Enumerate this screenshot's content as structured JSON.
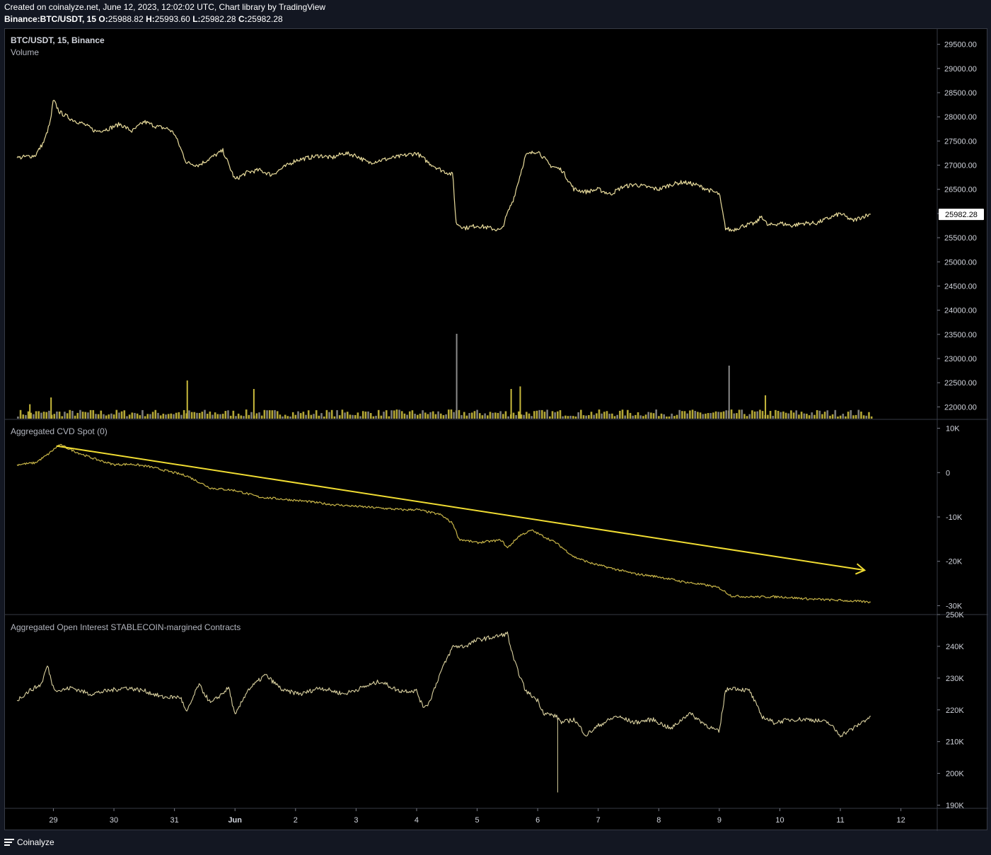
{
  "header": {
    "created": "Created on coinalyze.net, June 12, 2023, 12:02:02 UTC, Chart library by TradingView",
    "symbol": "Binance:BTC/USDT, 15",
    "o_label": "O:",
    "o": "25988.82",
    "h_label": "H:",
    "h": "25993.60",
    "l_label": "L:",
    "l": "25982.28",
    "c_label": "C:",
    "c": "25982.28"
  },
  "footer": {
    "brand": "Coinalyze"
  },
  "colors": {
    "background": "#000000",
    "page": "#131722",
    "price_line": "#e9dc9c",
    "volume_up": "#c8b93c",
    "volume_down": "#8a8a8a",
    "cvd_line": "#c8b548",
    "trend_arrow": "#f0dc32",
    "oi_line": "#d8cf9e",
    "axis_text": "#d1d4dc",
    "last_price_badge_bg": "#ffffff"
  },
  "chart_data": [
    {
      "type": "line",
      "title": "BTC/USDT, 15, Binance",
      "subtitle": "Volume",
      "ylim": [
        21800,
        29700
      ],
      "yticks": [
        "29500.00",
        "29000.00",
        "28500.00",
        "28000.00",
        "27500.00",
        "27000.00",
        "26500.00",
        "26000.00",
        "25500.00",
        "25000.00",
        "24500.00",
        "24000.00",
        "23500.00",
        "23000.00",
        "22500.00",
        "22000.00"
      ],
      "yticks_values": [
        29500,
        29000,
        28500,
        28000,
        27500,
        27000,
        26500,
        26000,
        25500,
        25000,
        24500,
        24000,
        23500,
        23000,
        22500,
        22000
      ],
      "last_value_label": "25982.28",
      "last_value": 25982.28,
      "x": [
        28.4,
        28.7,
        28.85,
        28.95,
        29.0,
        29.1,
        29.3,
        29.5,
        29.7,
        29.9,
        30.1,
        30.3,
        30.5,
        30.7,
        30.9,
        31.0,
        31.2,
        31.4,
        31.6,
        31.8,
        32.0,
        32.2,
        32.4,
        32.6,
        32.8,
        33.0,
        33.2,
        33.4,
        33.6,
        33.8,
        34.0,
        34.2,
        34.4,
        34.6,
        34.8,
        35.0,
        35.2,
        35.4,
        35.6,
        35.65,
        35.8,
        36.0,
        36.2,
        36.4,
        36.5,
        36.6,
        36.8,
        37.0,
        37.2,
        37.4,
        37.6,
        37.8,
        38.0,
        38.2,
        38.4,
        38.6,
        38.8,
        39.0,
        39.2,
        39.4,
        39.6,
        39.8,
        40.0,
        40.1,
        40.2,
        40.4,
        40.6,
        40.7,
        40.8,
        41.0,
        41.2,
        41.4,
        41.6,
        41.8,
        42.0,
        42.2,
        42.4,
        42.5
      ],
      "price": [
        27150,
        27200,
        27500,
        27900,
        28350,
        28100,
        27950,
        27850,
        27700,
        27750,
        27850,
        27700,
        27900,
        27800,
        27750,
        27650,
        27050,
        27000,
        27150,
        27300,
        26700,
        26850,
        26900,
        26800,
        26950,
        27100,
        27150,
        27200,
        27150,
        27250,
        27200,
        27050,
        27100,
        27150,
        27200,
        27250,
        27050,
        26900,
        26800,
        25800,
        25700,
        25750,
        25700,
        25650,
        26000,
        26300,
        27200,
        27300,
        27000,
        26900,
        26500,
        26450,
        26500,
        26400,
        26550,
        26600,
        26550,
        26500,
        26600,
        26650,
        26600,
        26500,
        26400,
        25700,
        25650,
        25750,
        25800,
        25950,
        25750,
        25800,
        25750,
        25800,
        25800,
        25900,
        26000,
        25850,
        25950,
        25982
      ],
      "volume_spikes": [
        {
          "x": 28.6,
          "value": 340
        },
        {
          "x": 28.95,
          "value": 500
        },
        {
          "x": 31.2,
          "value": 900
        },
        {
          "x": 32.3,
          "value": 700
        },
        {
          "x": 35.65,
          "value": 2000
        },
        {
          "x": 36.55,
          "value": 700
        },
        {
          "x": 36.7,
          "value": 760
        },
        {
          "x": 40.15,
          "value": 1250
        },
        {
          "x": 40.75,
          "value": 550
        }
      ]
    },
    {
      "type": "line",
      "title": "Aggregated CVD Spot (0)",
      "ylim": [
        -32000,
        12000
      ],
      "yticks": [
        "10K",
        "0",
        "-10K",
        "-20K",
        "-30K"
      ],
      "yticks_values": [
        10000,
        0,
        -10000,
        -20000,
        -30000
      ],
      "x": [
        28.4,
        28.7,
        28.9,
        29.1,
        29.4,
        29.7,
        30.0,
        30.3,
        30.6,
        30.9,
        31.2,
        31.6,
        32.0,
        32.4,
        32.8,
        33.2,
        33.6,
        34.0,
        34.4,
        34.8,
        35.0,
        35.4,
        35.6,
        35.7,
        36.0,
        36.4,
        36.5,
        36.7,
        36.9,
        37.3,
        37.6,
        37.9,
        38.2,
        38.6,
        39.0,
        39.4,
        39.8,
        40.0,
        40.2,
        40.5,
        41.0,
        41.5,
        42.0,
        42.5
      ],
      "values": [
        1800,
        2200,
        4000,
        6300,
        4500,
        3000,
        1800,
        1900,
        1300,
        300,
        -700,
        -3500,
        -4000,
        -5500,
        -6000,
        -6500,
        -7200,
        -7600,
        -8000,
        -8400,
        -8300,
        -9500,
        -11500,
        -15000,
        -15800,
        -15200,
        -17000,
        -14200,
        -13000,
        -15800,
        -19000,
        -20500,
        -21500,
        -22800,
        -23500,
        -24600,
        -25400,
        -26000,
        -27800,
        -28000,
        -28000,
        -28500,
        -28800,
        -29200
      ]
    },
    {
      "type": "line",
      "title": "Aggregated Open Interest STABLECOIN-margined Contracts",
      "ylim": [
        189000,
        250000
      ],
      "yticks": [
        "250K",
        "240K",
        "230K",
        "220K",
        "210K",
        "200K",
        "190K"
      ],
      "yticks_values": [
        250000,
        240000,
        230000,
        220000,
        210000,
        200000,
        190000
      ],
      "x": [
        28.4,
        28.6,
        28.8,
        28.9,
        29.0,
        29.1,
        29.3,
        29.6,
        29.9,
        30.2,
        30.5,
        30.8,
        31.1,
        31.2,
        31.4,
        31.6,
        31.9,
        32.0,
        32.2,
        32.5,
        32.8,
        33.1,
        33.4,
        33.8,
        34.1,
        34.4,
        34.7,
        35.0,
        35.1,
        35.2,
        35.4,
        35.6,
        35.8,
        36.0,
        36.3,
        36.5,
        36.6,
        36.8,
        37.0,
        37.1,
        37.3,
        37.4,
        37.6,
        37.8,
        38.0,
        38.3,
        38.6,
        38.9,
        39.2,
        39.5,
        39.8,
        40.0,
        40.1,
        40.2,
        40.5,
        40.7,
        40.9,
        41.2,
        41.5,
        41.8,
        42.0,
        42.2,
        42.5
      ],
      "values": [
        223000,
        226000,
        228000,
        234000,
        227000,
        226000,
        227000,
        225000,
        226000,
        227000,
        226000,
        224000,
        224000,
        219000,
        228000,
        222000,
        227000,
        218000,
        226000,
        231000,
        226000,
        225000,
        227000,
        225000,
        227000,
        229000,
        226000,
        226000,
        221000,
        222000,
        232000,
        240000,
        240000,
        242000,
        243000,
        244000,
        236000,
        226000,
        223000,
        219000,
        218000,
        216000,
        217000,
        212000,
        215000,
        218000,
        216000,
        217000,
        214000,
        219000,
        215000,
        213000,
        226000,
        227000,
        226000,
        218000,
        216000,
        217000,
        217000,
        216000,
        212000,
        214000,
        218000
      ],
      "annotation_spike": {
        "x": 37.33,
        "value": 194000
      }
    }
  ],
  "x_axis": {
    "x_values": [
      29,
      30,
      31,
      32,
      33,
      34,
      35,
      36,
      37,
      38,
      39,
      40,
      41,
      42
    ],
    "labels": [
      "29",
      "30",
      "31",
      "Jun",
      "2",
      "3",
      "4",
      "5",
      "6",
      "7",
      "8",
      "9",
      "10",
      "11",
      "12"
    ],
    "label_x": [
      29,
      30,
      31,
      32,
      33,
      34,
      35,
      36,
      37,
      38,
      39,
      40,
      41,
      42,
      43
    ]
  },
  "trend_arrow": {
    "from": {
      "x": 29.05,
      "value": 6000
    },
    "to": {
      "x": 42.4,
      "value": -22000
    }
  }
}
